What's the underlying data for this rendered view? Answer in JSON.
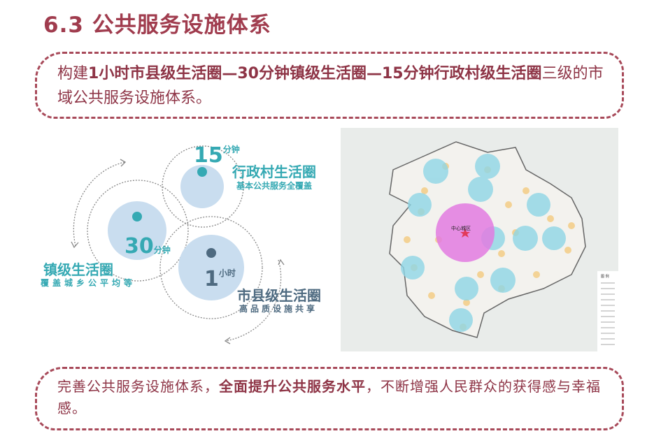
{
  "title": "6.3 公共服务设施体系",
  "intro": {
    "prefix": "构建",
    "bold": "1小时市县级生活圈—30分钟镇级生活圈—15分钟行政村级生活圈",
    "suffix": "三级的市域公共服务设施体系。"
  },
  "diagram": {
    "village": {
      "number": "15",
      "unit": "分钟",
      "name": "行政村生活圈",
      "desc": "基本公共服务全覆盖"
    },
    "town": {
      "number": "30",
      "unit": "分钟",
      "name": "镇级生活圈",
      "desc": "覆盖城乡公平均等"
    },
    "city": {
      "number": "1",
      "unit": "小时",
      "name": "市县级生活圈",
      "desc": "高品质设施共享"
    },
    "colors": {
      "teal": "#35a9b3",
      "dark": "#4e6a80",
      "fill": "#c9ddef"
    }
  },
  "map": {
    "center_label": "中心城区",
    "legend_title": "图 例",
    "colors": {
      "center": "#e27be0",
      "town": "#8fd6e6",
      "village": "#f3c878"
    }
  },
  "outro": {
    "prefix": "完善公共服务设施体系，",
    "bold": "全面提升公共服务水平",
    "suffix": "，不断增强人民群众的获得感与幸福感。"
  }
}
